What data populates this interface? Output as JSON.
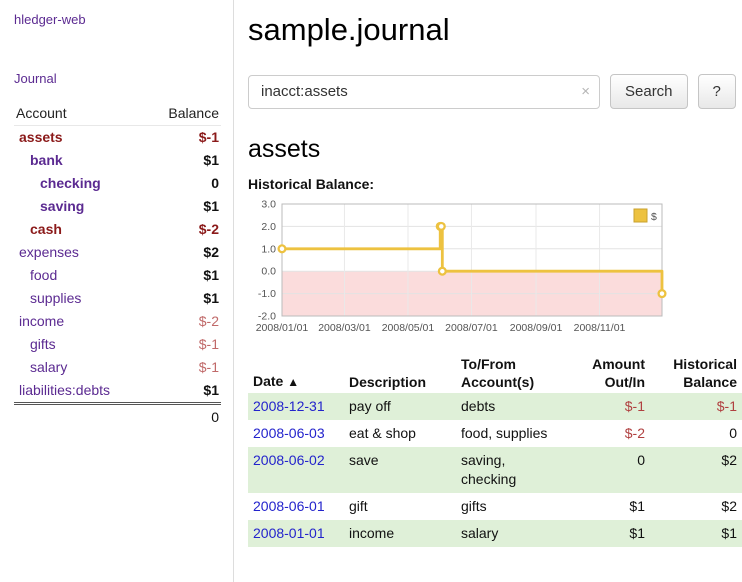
{
  "colors": {
    "link_purple": "#5b2a91",
    "negative_dark": "#8b1a1a",
    "negative_soft": "#c06969",
    "negative_table": "#b04040",
    "date_blue": "#2323cc",
    "row_green": "#dff0d8",
    "chart_line": "#edc240",
    "chart_negative_fill": "#fbdcdc"
  },
  "sidebar": {
    "app_title": "hledger-web",
    "journal_link": "Journal",
    "accounts_header": {
      "account": "Account",
      "balance": "Balance"
    },
    "accounts": [
      {
        "name": "assets",
        "balance": "$-1",
        "indent": 0,
        "bold": true
      },
      {
        "name": "bank",
        "balance": "$1",
        "indent": 1,
        "bold": true
      },
      {
        "name": "checking",
        "balance": "0",
        "indent": 2,
        "bold": true
      },
      {
        "name": "saving",
        "balance": "$1",
        "indent": 2,
        "bold": true
      },
      {
        "name": "cash",
        "balance": "$-2",
        "indent": 1,
        "bold": true
      },
      {
        "name": "expenses",
        "balance": "$2",
        "indent": 0,
        "bold": false
      },
      {
        "name": "food",
        "balance": "$1",
        "indent": 1,
        "bold": false
      },
      {
        "name": "supplies",
        "balance": "$1",
        "indent": 1,
        "bold": false
      },
      {
        "name": "income",
        "balance": "$-2",
        "indent": 0,
        "bold": false
      },
      {
        "name": "gifts",
        "balance": "$-1",
        "indent": 1,
        "bold": false
      },
      {
        "name": "salary",
        "balance": "$-1",
        "indent": 1,
        "bold": false
      },
      {
        "name": "liabilities:debts",
        "balance": "$1",
        "indent": 0,
        "bold": false
      }
    ],
    "total": "0"
  },
  "main": {
    "title": "sample.journal",
    "search": {
      "value": "inacct:assets",
      "clear": "×",
      "submit_label": "Search",
      "help_label": "?"
    },
    "account_heading": "assets",
    "chart_title": "Historical Balance:"
  },
  "chart_data": {
    "type": "line",
    "title": "Historical Balance",
    "steps": true,
    "ylim": [
      -2,
      3
    ],
    "y_ticks": [
      "3.0",
      "2.0",
      "1.0",
      "0.0",
      "-1.0",
      "-2.0"
    ],
    "x_ticks": [
      {
        "label": "2008/01/01",
        "x": 0.0
      },
      {
        "label": "2008/03/01",
        "x": 0.1644
      },
      {
        "label": "2008/05/01",
        "x": 0.3315
      },
      {
        "label": "2008/07/01",
        "x": 0.4986
      },
      {
        "label": "2008/09/01",
        "x": 0.6685
      },
      {
        "label": "2008/11/01",
        "x": 0.8356
      }
    ],
    "legend": "$",
    "negative_region_below": 0,
    "series": [
      {
        "name": "$",
        "color": "#edc240",
        "points": [
          {
            "date": "2008-01-01",
            "x": 0.0,
            "y": 1
          },
          {
            "date": "2008-06-01",
            "x": 0.4164,
            "y": 2
          },
          {
            "date": "2008-06-02",
            "x": 0.4192,
            "y": 2
          },
          {
            "date": "2008-06-03",
            "x": 0.4219,
            "y": 0
          },
          {
            "date": "2008-12-31",
            "x": 1.0,
            "y": -1
          }
        ]
      }
    ]
  },
  "register": {
    "headers": {
      "date": "Date",
      "sort_indicator": "▲",
      "description": "Description",
      "account": "To/From Account(s)",
      "amount": "Amount Out/In",
      "balance": "Historical Balance"
    },
    "rows": [
      {
        "date": "2008-12-31",
        "description": "pay off",
        "account": "debts",
        "amount": "$-1",
        "balance": "$-1"
      },
      {
        "date": "2008-06-03",
        "description": "eat & shop",
        "account": "food, supplies",
        "amount": "$-2",
        "balance": "0"
      },
      {
        "date": "2008-06-02",
        "description": "save",
        "account": "saving, checking",
        "amount": "0",
        "balance": "$2"
      },
      {
        "date": "2008-06-01",
        "description": "gift",
        "account": "gifts",
        "amount": "$1",
        "balance": "$2"
      },
      {
        "date": "2008-01-01",
        "description": "income",
        "account": "salary",
        "amount": "$1",
        "balance": "$1"
      }
    ]
  }
}
